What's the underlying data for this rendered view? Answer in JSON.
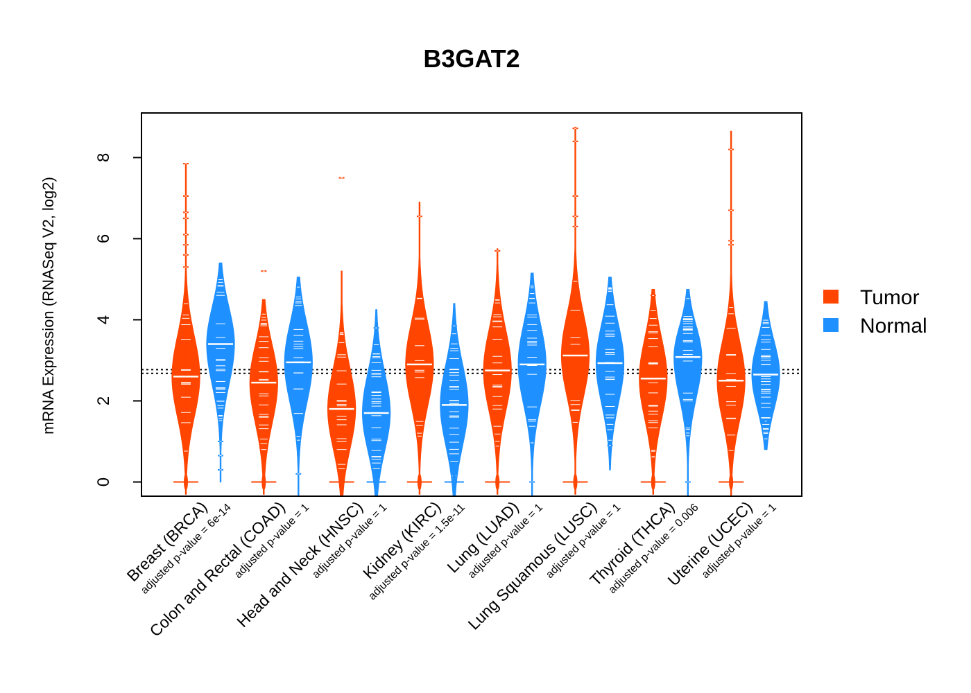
{
  "chart_data": {
    "type": "beanplot",
    "title": "B3GAT2",
    "ylabel": "mRNA Expression (RNASeq V2, log2)",
    "ylim": [
      -0.35,
      9.1
    ],
    "yticks": [
      0,
      2,
      4,
      6,
      8
    ],
    "reference_lines": [
      2.68,
      2.77
    ],
    "legend": {
      "position": "right",
      "entries": [
        {
          "label": "Tumor",
          "color": "#FF4500"
        },
        {
          "label": "Normal",
          "color": "#1E90FF"
        }
      ]
    },
    "categories": [
      {
        "name": "Breast (BRCA)",
        "pvalue": "adjusted p-value = 6e-14"
      },
      {
        "name": "Colon and Rectal (COAD)",
        "pvalue": "adjusted p-value = 1"
      },
      {
        "name": "Head and Neck (HNSC)",
        "pvalue": "adjusted p-value = 1"
      },
      {
        "name": "Kidney (KIRC)",
        "pvalue": "adjusted p-value = 1.5e-11"
      },
      {
        "name": "Lung (LUAD)",
        "pvalue": "adjusted p-value = 1"
      },
      {
        "name": "Lung Squamous (LUSC)",
        "pvalue": "adjusted p-value = 1"
      },
      {
        "name": "Thyroid (THCA)",
        "pvalue": "adjusted p-value = 0.006"
      },
      {
        "name": "Uterine (UCEC)",
        "pvalue": "adjusted p-value = 1"
      }
    ],
    "series": [
      {
        "name": "Tumor",
        "color": "#FF4500",
        "beans": [
          {
            "min": -0.3,
            "max": 7.85,
            "median": 2.6,
            "zero_cluster": true,
            "outliers": [
              7.85,
              7.05,
              6.65,
              6.5,
              6.1,
              5.85,
              5.6,
              5.3
            ]
          },
          {
            "min": -0.3,
            "max": 4.5,
            "median": 2.45,
            "zero_cluster": true,
            "outliers": [
              5.2
            ]
          },
          {
            "min": -0.35,
            "max": 5.2,
            "median": 1.8,
            "zero_cluster": true,
            "outliers": [
              7.5
            ]
          },
          {
            "min": -0.3,
            "max": 6.9,
            "median": 2.9,
            "zero_cluster": true,
            "outliers": [
              6.55
            ]
          },
          {
            "min": -0.3,
            "max": 5.75,
            "median": 2.75,
            "zero_cluster": true,
            "outliers": [
              5.7
            ]
          },
          {
            "min": -0.3,
            "max": 8.75,
            "median": 3.12,
            "zero_cluster": true,
            "outliers": [
              8.72,
              8.4,
              7.05,
              6.55,
              6.3
            ]
          },
          {
            "min": -0.3,
            "max": 4.75,
            "median": 2.55,
            "zero_cluster": true,
            "outliers": [
              4.6
            ]
          },
          {
            "min": -0.35,
            "max": 8.65,
            "median": 2.5,
            "zero_cluster": true,
            "outliers": [
              8.2,
              6.7,
              5.95,
              5.85
            ]
          }
        ]
      },
      {
        "name": "Normal",
        "color": "#1E90FF",
        "beans": [
          {
            "min": 0.0,
            "max": 5.4,
            "median": 3.4,
            "zero_cluster": false,
            "outliers": [
              1.0,
              0.65,
              0.3
            ]
          },
          {
            "min": -0.35,
            "max": 5.05,
            "median": 2.95,
            "zero_cluster": false,
            "outliers": [
              0.2
            ]
          },
          {
            "min": -0.35,
            "max": 4.25,
            "median": 1.7,
            "zero_cluster": true,
            "outliers": [
              3.8
            ]
          },
          {
            "min": -0.35,
            "max": 4.4,
            "median": 1.9,
            "zero_cluster": true,
            "outliers": [
              3.85
            ]
          },
          {
            "min": -0.35,
            "max": 5.15,
            "median": 2.9,
            "zero_cluster": false,
            "outliers": [
              0.0
            ]
          },
          {
            "min": 0.3,
            "max": 5.05,
            "median": 2.93,
            "zero_cluster": false,
            "outliers": [
              0.9
            ]
          },
          {
            "min": -0.35,
            "max": 4.75,
            "median": 3.08,
            "zero_cluster": false,
            "outliers": [
              0.0
            ]
          },
          {
            "min": 0.8,
            "max": 4.45,
            "median": 2.65,
            "zero_cluster": false,
            "outliers": [
              1.5
            ]
          }
        ]
      }
    ]
  }
}
